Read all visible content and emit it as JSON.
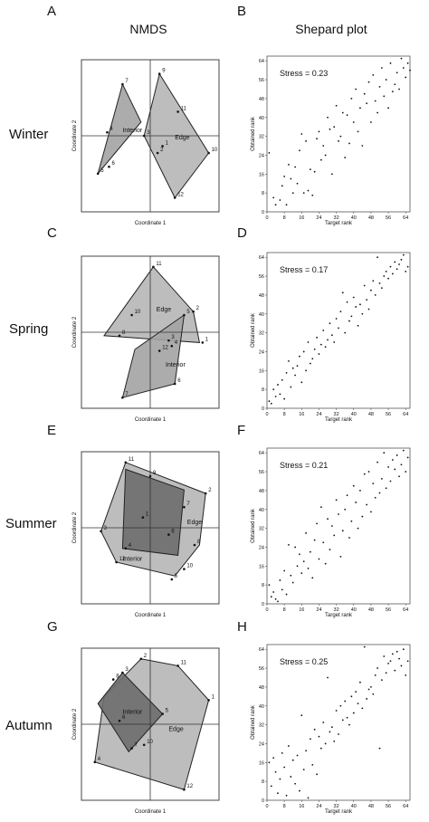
{
  "figure": {
    "column_headers": [
      "NMDS",
      "Shepard plot"
    ],
    "panel_letters": [
      "A",
      "B",
      "C",
      "D",
      "E",
      "F",
      "G",
      "H"
    ],
    "seasons": [
      "Winter",
      "Spring",
      "Summer",
      "Autumn"
    ],
    "nmds_axis_labels": {
      "x": "Coordinate 1",
      "y": "Coordinate 2"
    },
    "shepard_axis_labels": {
      "x": "Target rank",
      "y": "Obtained rank"
    },
    "group_labels": {
      "edge": "Edge",
      "interior": "Interior"
    },
    "colors": {
      "edge_fill": "#b9b9b9",
      "interior_fill_light": "#a3a3a3",
      "interior_fill_dark": "#6d6d6d"
    }
  },
  "nmds": [
    {
      "season": "Winter",
      "interior_polygon": [
        [
          -0.85,
          -0.55
        ],
        [
          -0.45,
          0.75
        ],
        [
          -0.15,
          0.2
        ]
      ],
      "edge_polygon": [
        [
          0.15,
          0.9
        ],
        [
          0.95,
          -0.25
        ],
        [
          0.4,
          -0.9
        ],
        [
          -0.1,
          0.0
        ]
      ],
      "points": [
        {
          "label": "7",
          "x": -0.45,
          "y": 0.75
        },
        {
          "label": "4",
          "x": -0.7,
          "y": 0.05
        },
        {
          "label": "6",
          "x": -0.67,
          "y": -0.45
        },
        {
          "label": "5",
          "x": -0.85,
          "y": -0.55
        },
        {
          "label": "9",
          "x": 0.15,
          "y": 0.9
        },
        {
          "label": "11",
          "x": 0.45,
          "y": 0.35
        },
        {
          "label": "3",
          "x": -0.1,
          "y": 0.0
        },
        {
          "label": "1",
          "x": 0.2,
          "y": -0.15
        },
        {
          "label": "2",
          "x": 0.12,
          "y": -0.25
        },
        {
          "label": "10",
          "x": 0.95,
          "y": -0.25
        },
        {
          "label": "12",
          "x": 0.4,
          "y": -0.9
        }
      ],
      "edge_label_pos": [
        0.4,
        -0.05
      ],
      "interior_label_pos": [
        -0.45,
        0.05
      ]
    },
    {
      "season": "Spring",
      "interior_polygon": [
        [
          -0.45,
          -0.95
        ],
        [
          -0.25,
          -0.25
        ],
        [
          0.55,
          0.25
        ],
        [
          0.4,
          -0.75
        ]
      ],
      "edge_polygon": [
        [
          0.05,
          0.95
        ],
        [
          0.7,
          0.3
        ],
        [
          0.8,
          -0.15
        ],
        [
          -0.75,
          -0.05
        ]
      ],
      "points": [
        {
          "label": "11",
          "x": 0.05,
          "y": 0.95
        },
        {
          "label": "2",
          "x": 0.7,
          "y": 0.3
        },
        {
          "label": "1",
          "x": 0.85,
          "y": -0.15
        },
        {
          "label": "10",
          "x": -0.3,
          "y": 0.25
        },
        {
          "label": "8",
          "x": -0.5,
          "y": -0.05
        },
        {
          "label": "12",
          "x": 0.15,
          "y": -0.27
        },
        {
          "label": "5",
          "x": 0.55,
          "y": 0.25
        },
        {
          "label": "3",
          "x": 0.3,
          "y": -0.12
        },
        {
          "label": "4",
          "x": 0.35,
          "y": -0.2
        },
        {
          "label": "6",
          "x": 0.4,
          "y": -0.75
        },
        {
          "label": "7",
          "x": -0.45,
          "y": -0.95
        }
      ],
      "edge_label_pos": [
        0.1,
        0.3
      ],
      "interior_label_pos": [
        0.25,
        -0.5
      ]
    },
    {
      "season": "Summer",
      "interior_polygon": [
        [
          -0.4,
          0.85
        ],
        [
          0.55,
          0.55
        ],
        [
          0.45,
          -0.4
        ],
        [
          -0.45,
          -0.3
        ]
      ],
      "edge_polygon": [
        [
          -0.4,
          0.95
        ],
        [
          0.9,
          0.5
        ],
        [
          0.8,
          -0.25
        ],
        [
          0.4,
          -0.7
        ],
        [
          -0.55,
          -0.5
        ],
        [
          -0.8,
          -0.05
        ]
      ],
      "points": [
        {
          "label": "11",
          "x": -0.4,
          "y": 0.95
        },
        {
          "label": "9",
          "x": 0.0,
          "y": 0.75
        },
        {
          "label": "2",
          "x": 0.9,
          "y": 0.5
        },
        {
          "label": "7",
          "x": 0.55,
          "y": 0.3
        },
        {
          "label": "1",
          "x": -0.12,
          "y": 0.15
        },
        {
          "label": "6",
          "x": 0.3,
          "y": -0.1
        },
        {
          "label": "8",
          "x": 0.72,
          "y": -0.25
        },
        {
          "label": "3",
          "x": -0.8,
          "y": -0.05
        },
        {
          "label": "4",
          "x": -0.4,
          "y": -0.3
        },
        {
          "label": "10",
          "x": 0.55,
          "y": -0.6
        },
        {
          "label": "5",
          "x": 0.35,
          "y": -0.75
        },
        {
          "label": "12",
          "x": -0.55,
          "y": -0.5
        }
      ],
      "edge_label_pos": [
        0.6,
        0.05
      ],
      "interior_label_pos": [
        -0.45,
        -0.48
      ]
    },
    {
      "season": "Autumn",
      "interior_polygon": [
        [
          -0.85,
          0.3
        ],
        [
          -0.45,
          0.75
        ],
        [
          0.2,
          0.15
        ],
        [
          -0.35,
          -0.4
        ]
      ],
      "edge_polygon": [
        [
          -0.15,
          0.95
        ],
        [
          0.45,
          0.85
        ],
        [
          0.95,
          0.35
        ],
        [
          0.55,
          -0.95
        ],
        [
          -0.9,
          -0.55
        ],
        [
          -0.75,
          0.4
        ]
      ],
      "points": [
        {
          "label": "2",
          "x": -0.15,
          "y": 0.95
        },
        {
          "label": "11",
          "x": 0.45,
          "y": 0.85
        },
        {
          "label": "1",
          "x": 0.95,
          "y": 0.35
        },
        {
          "label": "8",
          "x": -0.6,
          "y": 0.65
        },
        {
          "label": "3",
          "x": -0.45,
          "y": 0.75
        },
        {
          "label": "5",
          "x": 0.2,
          "y": 0.15
        },
        {
          "label": "6",
          "x": -0.5,
          "y": 0.05
        },
        {
          "label": "7",
          "x": -0.3,
          "y": -0.35
        },
        {
          "label": "10",
          "x": -0.1,
          "y": -0.3
        },
        {
          "label": "4",
          "x": -0.9,
          "y": -0.55
        },
        {
          "label": "12",
          "x": 0.55,
          "y": -0.95
        }
      ],
      "edge_label_pos": [
        0.3,
        -0.1
      ],
      "interior_label_pos": [
        -0.45,
        0.15
      ]
    }
  ],
  "chart_data": [
    {
      "type": "scatter",
      "panel": "B",
      "title": "Stress = 0.23",
      "xlabel": "Target rank",
      "ylabel": "Obtained rank",
      "xlim": [
        0,
        66
      ],
      "ylim": [
        0,
        66
      ],
      "ticks": [
        0,
        8,
        16,
        24,
        32,
        40,
        48,
        56,
        64
      ],
      "x": [
        1,
        3,
        4,
        6,
        7,
        8,
        9,
        10,
        11,
        12,
        13,
        14,
        15,
        16,
        17,
        18,
        19,
        20,
        21,
        22,
        23,
        24,
        25,
        26,
        27,
        28,
        29,
        30,
        31,
        32,
        33,
        34,
        35,
        36,
        37,
        38,
        39,
        40,
        41,
        42,
        43,
        44,
        45,
        46,
        47,
        48,
        49,
        50,
        51,
        52,
        53,
        54,
        55,
        56,
        57,
        58,
        59,
        60,
        61,
        62,
        63,
        64,
        65,
        66
      ],
      "y": [
        25,
        6,
        3,
        5,
        11,
        15,
        3,
        20,
        14,
        8,
        19,
        12,
        26,
        33,
        8,
        30,
        9,
        18,
        7,
        17,
        31,
        34,
        22,
        28,
        24,
        40,
        35,
        16,
        36,
        45,
        30,
        32,
        42,
        23,
        41,
        29,
        48,
        38,
        52,
        34,
        44,
        28,
        50,
        46,
        55,
        38,
        58,
        47,
        42,
        53,
        61,
        49,
        56,
        44,
        63,
        51,
        54,
        59,
        52,
        65,
        61,
        57,
        63,
        60
      ]
    },
    {
      "type": "scatter",
      "panel": "D",
      "title": "Stress = 0.17",
      "xlabel": "Target rank",
      "ylabel": "Obtained rank",
      "xlim": [
        0,
        66
      ],
      "ylim": [
        0,
        66
      ],
      "ticks": [
        0,
        8,
        16,
        24,
        32,
        40,
        48,
        56,
        64
      ],
      "x": [
        1,
        2,
        3,
        4,
        5,
        6,
        7,
        8,
        9,
        10,
        11,
        12,
        13,
        14,
        15,
        16,
        17,
        18,
        19,
        20,
        21,
        22,
        23,
        24,
        25,
        26,
        27,
        28,
        29,
        30,
        31,
        32,
        33,
        34,
        35,
        36,
        37,
        38,
        39,
        40,
        41,
        42,
        43,
        44,
        45,
        46,
        47,
        48,
        49,
        50,
        51,
        52,
        53,
        54,
        55,
        56,
        57,
        58,
        59,
        60,
        61,
        62,
        63,
        64,
        65
      ],
      "y": [
        3,
        2,
        8,
        5,
        10,
        6,
        12,
        4,
        15,
        20,
        9,
        17,
        14,
        18,
        22,
        11,
        24,
        16,
        28,
        19,
        21,
        25,
        30,
        23,
        27,
        33,
        26,
        29,
        36,
        31,
        28,
        38,
        34,
        41,
        49,
        32,
        45,
        37,
        39,
        47,
        43,
        35,
        44,
        40,
        52,
        46,
        42,
        50,
        54,
        48,
        64,
        53,
        51,
        56,
        58,
        55,
        60,
        57,
        62,
        59,
        61,
        63,
        65,
        58,
        60
      ]
    },
    {
      "type": "scatter",
      "panel": "F",
      "title": "Stress = 0.21",
      "xlabel": "Target rank",
      "ylabel": "Obtained rank",
      "xlim": [
        0,
        66
      ],
      "ylim": [
        0,
        66
      ],
      "ticks": [
        0,
        8,
        16,
        24,
        32,
        40,
        48,
        56,
        64
      ],
      "x": [
        1,
        2,
        3,
        4,
        5,
        6,
        7,
        8,
        9,
        10,
        11,
        12,
        13,
        14,
        15,
        16,
        17,
        18,
        19,
        20,
        21,
        22,
        23,
        24,
        25,
        26,
        27,
        28,
        29,
        30,
        31,
        32,
        33,
        34,
        35,
        36,
        37,
        38,
        39,
        40,
        41,
        42,
        43,
        44,
        45,
        46,
        47,
        48,
        49,
        50,
        51,
        52,
        53,
        54,
        55,
        56,
        57,
        58,
        59,
        60,
        61,
        62,
        63,
        64,
        65
      ],
      "y": [
        8,
        3,
        5,
        2,
        1,
        10,
        6,
        14,
        4,
        25,
        12,
        9,
        24,
        16,
        21,
        13,
        18,
        30,
        15,
        22,
        11,
        27,
        34,
        19,
        41,
        26,
        17,
        36,
        23,
        33,
        29,
        44,
        38,
        20,
        31,
        40,
        46,
        28,
        35,
        50,
        43,
        32,
        48,
        37,
        55,
        42,
        56,
        39,
        51,
        45,
        60,
        47,
        53,
        64,
        49,
        58,
        52,
        61,
        57,
        63,
        54,
        59,
        65,
        56,
        62
      ]
    },
    {
      "type": "scatter",
      "panel": "H",
      "title": "Stress = 0.25",
      "xlabel": "Target rank",
      "ylabel": "Obtained rank",
      "xlim": [
        0,
        66
      ],
      "ylim": [
        0,
        66
      ],
      "ticks": [
        0,
        8,
        16,
        24,
        32,
        40,
        48,
        56,
        64
      ],
      "x": [
        1,
        2,
        3,
        4,
        5,
        6,
        7,
        8,
        9,
        10,
        11,
        12,
        13,
        14,
        15,
        16,
        17,
        18,
        19,
        20,
        21,
        22,
        23,
        24,
        25,
        26,
        27,
        28,
        29,
        30,
        31,
        32,
        33,
        34,
        35,
        36,
        37,
        38,
        39,
        40,
        41,
        42,
        43,
        44,
        45,
        46,
        47,
        48,
        49,
        50,
        51,
        52,
        53,
        54,
        55,
        56,
        57,
        58,
        59,
        60,
        61,
        62,
        63,
        64,
        65
      ],
      "y": [
        16,
        6,
        18,
        12,
        3,
        9,
        20,
        14,
        2,
        23,
        10,
        17,
        7,
        19,
        4,
        36,
        13,
        21,
        1,
        26,
        15,
        30,
        11,
        27,
        22,
        33,
        24,
        52,
        29,
        31,
        25,
        38,
        28,
        40,
        34,
        42,
        35,
        32,
        44,
        37,
        46,
        41,
        50,
        39,
        65,
        43,
        47,
        48,
        45,
        53,
        56,
        22,
        51,
        61,
        54,
        58,
        59,
        62,
        55,
        63,
        60,
        57,
        64,
        53,
        59
      ]
    }
  ]
}
